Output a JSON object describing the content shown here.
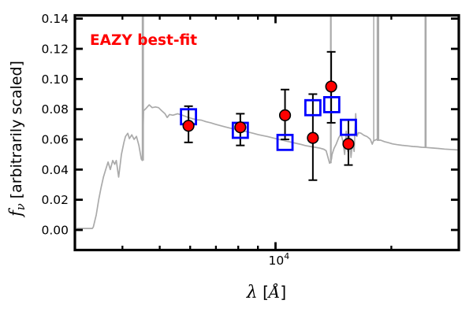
{
  "figure": {
    "background": "#ffffff",
    "annotation": {
      "text": "EAZY best-fit",
      "color": "#ff0000"
    },
    "axes": {
      "ylabel_math_italic": "f",
      "ylabel_subscript": "ν",
      "ylabel_rest": " [arbitrarily scaled]",
      "xlabel_lambda": "λ",
      "xlabel_open": " [",
      "xlabel_angstrom": "Å",
      "xlabel_close": "]",
      "x_major_label_base": "10",
      "x_major_label_exp": "4",
      "y_tick_labels": [
        "0.00",
        "0.02",
        "0.04",
        "0.06",
        "0.08",
        "0.10",
        "0.12",
        "0.14"
      ]
    }
  },
  "chart_data": {
    "type": "line",
    "title": "",
    "annotation": "EAZY best-fit",
    "xlabel": "λ [Å]",
    "ylabel": "f_ν [arbitrarily scaled]",
    "x_scale": "log",
    "xlim": [
      3000,
      30000
    ],
    "ylim": [
      -0.013,
      0.142
    ],
    "grid": false,
    "legend": "none",
    "y_ticks": [
      0.0,
      0.02,
      0.04,
      0.06,
      0.08,
      0.1,
      0.12,
      0.14
    ],
    "x_major_ticks": [
      10000
    ],
    "x_minor_ticks": [
      4000,
      5000,
      6000,
      7000,
      8000,
      9000,
      20000
    ],
    "colors": {
      "spectrum": "#aaaaaa",
      "observed_fill": "#ff0000",
      "observed_edge": "#000000",
      "model_edge": "#0000ff",
      "frame": "#000000"
    },
    "series": [
      {
        "name": "eazy-model-spectrum",
        "type": "line",
        "color": "#aaaaaa",
        "points": [
          [
            3050,
            0.001
          ],
          [
            3340,
            0.001
          ],
          [
            3360,
            0.002
          ],
          [
            3420,
            0.01
          ],
          [
            3470,
            0.02
          ],
          [
            3520,
            0.028
          ],
          [
            3570,
            0.035
          ],
          [
            3620,
            0.04
          ],
          [
            3670,
            0.045
          ],
          [
            3720,
            0.04
          ],
          [
            3775,
            0.046
          ],
          [
            3820,
            0.0435
          ],
          [
            3855,
            0.046
          ],
          [
            3910,
            0.035
          ],
          [
            3975,
            0.05
          ],
          [
            4035,
            0.058
          ],
          [
            4075,
            0.062
          ],
          [
            4130,
            0.064
          ],
          [
            4170,
            0.0605
          ],
          [
            4230,
            0.063
          ],
          [
            4290,
            0.06
          ],
          [
            4350,
            0.062
          ],
          [
            4415,
            0.056
          ],
          [
            4477,
            0.047
          ],
          [
            4505,
            0.046
          ],
          [
            4540,
            0.079
          ],
          [
            4605,
            0.0805
          ],
          [
            4695,
            0.0829
          ],
          [
            4780,
            0.081
          ],
          [
            4875,
            0.0815
          ],
          [
            4965,
            0.081
          ],
          [
            5060,
            0.079
          ],
          [
            5160,
            0.077
          ],
          [
            5230,
            0.0745
          ],
          [
            5305,
            0.0765
          ],
          [
            5410,
            0.076
          ],
          [
            5565,
            0.077
          ],
          [
            5725,
            0.076
          ],
          [
            5890,
            0.0748
          ],
          [
            6060,
            0.0738
          ],
          [
            6235,
            0.073
          ],
          [
            6410,
            0.0728
          ],
          [
            6600,
            0.0717
          ],
          [
            6785,
            0.071
          ],
          [
            6980,
            0.07
          ],
          [
            7180,
            0.0692
          ],
          [
            7390,
            0.0683
          ],
          [
            7600,
            0.0675
          ],
          [
            7820,
            0.0669
          ],
          [
            8045,
            0.0661
          ],
          [
            8275,
            0.0654
          ],
          [
            8515,
            0.0648
          ],
          [
            8760,
            0.064
          ],
          [
            9010,
            0.0632
          ],
          [
            9270,
            0.0625
          ],
          [
            9540,
            0.0619
          ],
          [
            9815,
            0.0611
          ],
          [
            10095,
            0.0603
          ],
          [
            10385,
            0.0596
          ],
          [
            10685,
            0.0588
          ],
          [
            10990,
            0.0581
          ],
          [
            11310,
            0.0574
          ],
          [
            11635,
            0.0567
          ],
          [
            11970,
            0.0559
          ],
          [
            12315,
            0.0553
          ],
          [
            12665,
            0.0548
          ],
          [
            13030,
            0.0542
          ],
          [
            13345,
            0.0535
          ],
          [
            13535,
            0.0525
          ],
          [
            13695,
            0.048
          ],
          [
            13825,
            0.0442
          ],
          [
            13870,
            0.0445
          ],
          [
            13980,
            0.047
          ],
          [
            14025,
            0.05
          ],
          [
            14190,
            0.054
          ],
          [
            14390,
            0.057
          ],
          [
            14600,
            0.0612
          ],
          [
            14805,
            0.0635
          ],
          [
            14980,
            0.0585
          ],
          [
            15125,
            0.05
          ],
          [
            15270,
            0.0655
          ],
          [
            15415,
            0.052
          ],
          [
            15560,
            0.0625
          ],
          [
            15705,
            0.048
          ],
          [
            15855,
            0.058
          ],
          [
            16005,
            0.052
          ],
          [
            16160,
            0.077
          ],
          [
            16275,
            0.062
          ],
          [
            16430,
            0.0645
          ],
          [
            16665,
            0.0641
          ],
          [
            16980,
            0.0627
          ],
          [
            17305,
            0.0618
          ],
          [
            17635,
            0.0601
          ],
          [
            17845,
            0.0568
          ],
          [
            17975,
            0.059
          ],
          [
            18145,
            0.0595
          ],
          [
            18315,
            0.06
          ],
          [
            18520,
            0.0595
          ],
          [
            18755,
            0.0595
          ],
          [
            19205,
            0.0585
          ],
          [
            19660,
            0.0578
          ],
          [
            20130,
            0.057
          ],
          [
            20710,
            0.0565
          ],
          [
            21310,
            0.0561
          ],
          [
            22025,
            0.0557
          ],
          [
            22765,
            0.0553
          ],
          [
            23420,
            0.0551
          ],
          [
            23980,
            0.0548
          ],
          [
            24670,
            0.0546
          ],
          [
            25500,
            0.0543
          ],
          [
            26485,
            0.054
          ],
          [
            27505,
            0.0536
          ],
          [
            28565,
            0.0533
          ],
          [
            29800,
            0.053
          ]
        ]
      },
      {
        "name": "emission-line-spikes",
        "type": "vlines",
        "color": "#aaaaaa",
        "top": 0.142,
        "lines": [
          {
            "lambda": 4520,
            "from": 0.046,
            "width": 2.8
          },
          {
            "lambda": 13925,
            "from": 0.0442,
            "width": 2.2
          },
          {
            "lambda": 18000,
            "from": 0.059,
            "width": 1.5
          },
          {
            "lambda": 18460,
            "from": 0.059,
            "width": 3.2
          },
          {
            "lambda": 24550,
            "from": 0.0545,
            "width": 2.6
          }
        ]
      },
      {
        "name": "observed-photometry",
        "type": "scatter",
        "marker": "circle",
        "fill": "#ff0000",
        "edge": "#000000",
        "points": [
          {
            "lambda": 5940,
            "flux": 0.069,
            "err_plus": 0.013,
            "err_minus": 0.011
          },
          {
            "lambda": 8100,
            "flux": 0.068,
            "err_plus": 0.009,
            "err_minus": 0.012
          },
          {
            "lambda": 10585,
            "flux": 0.076,
            "err_plus": 0.017,
            "err_minus": 0.016
          },
          {
            "lambda": 12505,
            "flux": 0.061,
            "err_plus": 0.029,
            "err_minus": 0.028
          },
          {
            "lambda": 13955,
            "flux": 0.095,
            "err_plus": 0.023,
            "err_minus": 0.024
          },
          {
            "lambda": 15470,
            "flux": 0.057,
            "err_plus": 0.016,
            "err_minus": 0.014
          }
        ]
      },
      {
        "name": "model-photometry",
        "type": "scatter",
        "marker": "open-square",
        "edge": "#0000ff",
        "points": [
          {
            "lambda": 5940,
            "flux": 0.075
          },
          {
            "lambda": 8100,
            "flux": 0.066
          },
          {
            "lambda": 10585,
            "flux": 0.058
          },
          {
            "lambda": 12505,
            "flux": 0.081
          },
          {
            "lambda": 14000,
            "flux": 0.083
          },
          {
            "lambda": 15470,
            "flux": 0.068
          }
        ]
      }
    ]
  }
}
